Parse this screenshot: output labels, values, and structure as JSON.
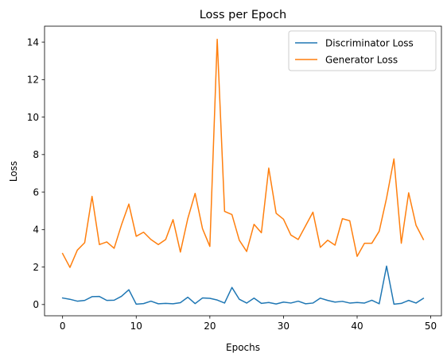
{
  "chart_data": {
    "type": "line",
    "title": "Loss per Epoch",
    "xlabel": "Epochs",
    "ylabel": "Loss",
    "xlim": [
      -2.45,
      51.45
    ],
    "ylim": [
      -0.6,
      14.85
    ],
    "xticks": [
      0,
      10,
      20,
      30,
      40,
      50
    ],
    "yticks": [
      0,
      2,
      4,
      6,
      8,
      10,
      12,
      14
    ],
    "grid": false,
    "legend_position": "top-right",
    "x": [
      0,
      1,
      2,
      3,
      4,
      5,
      6,
      7,
      8,
      9,
      10,
      11,
      12,
      13,
      14,
      15,
      16,
      17,
      18,
      19,
      20,
      21,
      22,
      23,
      24,
      25,
      26,
      27,
      28,
      29,
      30,
      31,
      32,
      33,
      34,
      35,
      36,
      37,
      38,
      39,
      40,
      41,
      42,
      43,
      44,
      45,
      46,
      47,
      48,
      49
    ],
    "series": [
      {
        "name": "Discriminator Loss",
        "color": "#1f77b4",
        "values": [
          0.35,
          0.28,
          0.18,
          0.22,
          0.42,
          0.43,
          0.22,
          0.23,
          0.44,
          0.79,
          0.02,
          0.05,
          0.18,
          0.04,
          0.06,
          0.04,
          0.1,
          0.39,
          0.05,
          0.35,
          0.33,
          0.24,
          0.08,
          0.91,
          0.28,
          0.08,
          0.34,
          0.06,
          0.11,
          0.03,
          0.13,
          0.08,
          0.18,
          0.04,
          0.08,
          0.34,
          0.22,
          0.13,
          0.17,
          0.08,
          0.11,
          0.08,
          0.23,
          0.04,
          2.05,
          0.02,
          0.06,
          0.22,
          0.08,
          0.33
        ]
      },
      {
        "name": "Generator Loss",
        "color": "#ff7f0e",
        "values": [
          2.72,
          1.98,
          2.9,
          3.3,
          5.77,
          3.2,
          3.34,
          3.0,
          4.25,
          5.36,
          3.64,
          3.86,
          3.47,
          3.2,
          3.47,
          4.53,
          2.8,
          4.58,
          5.93,
          4.05,
          3.1,
          14.15,
          4.97,
          4.8,
          3.43,
          2.83,
          4.28,
          3.83,
          7.28,
          4.87,
          4.55,
          3.71,
          3.47,
          4.2,
          4.93,
          3.05,
          3.43,
          3.17,
          4.58,
          4.47,
          2.57,
          3.27,
          3.27,
          3.91,
          5.68,
          7.77,
          3.27,
          5.96,
          4.23,
          3.47
        ]
      }
    ]
  }
}
